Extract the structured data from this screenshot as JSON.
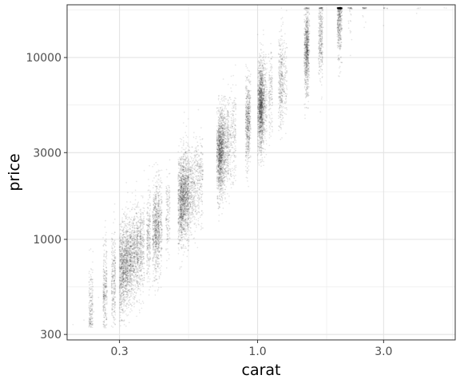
{
  "chart_data": {
    "type": "scatter",
    "title": "",
    "xlabel": "carat",
    "ylabel": "price",
    "x_scale": "log10",
    "y_scale": "log10",
    "xlim": [
      0.19,
      5.6
    ],
    "ylim": [
      280,
      19500
    ],
    "x_ticks": [
      {
        "value": 0.3,
        "label": "0.3"
      },
      {
        "value": 1.0,
        "label": "1.0"
      },
      {
        "value": 3.0,
        "label": "3.0"
      }
    ],
    "y_ticks": [
      {
        "value": 300,
        "label": "300"
      },
      {
        "value": 1000,
        "label": "1000"
      },
      {
        "value": 3000,
        "label": "3000"
      },
      {
        "value": 10000,
        "label": "10000"
      }
    ],
    "grid": true,
    "theme": "minimal-bordered",
    "point_color": "#000000",
    "point_alpha": 0.1,
    "n_points_approx": 53940,
    "price_ceiling": 18823,
    "series": [
      {
        "values": [
          [
            0.2,
            340
          ],
          [
            0.22,
            360
          ],
          [
            0.23,
            330
          ],
          [
            0.23,
            420
          ],
          [
            0.24,
            400
          ],
          [
            0.25,
            480
          ],
          [
            0.26,
            470
          ],
          [
            0.27,
            520
          ],
          [
            0.28,
            520
          ],
          [
            0.3,
            420
          ],
          [
            0.3,
            540
          ],
          [
            0.3,
            700
          ],
          [
            0.3,
            900
          ],
          [
            0.31,
            600
          ],
          [
            0.31,
            760
          ],
          [
            0.32,
            700
          ],
          [
            0.33,
            800
          ],
          [
            0.34,
            900
          ],
          [
            0.35,
            870
          ],
          [
            0.38,
            950
          ],
          [
            0.4,
            1000
          ],
          [
            0.41,
            1150
          ],
          [
            0.42,
            1200
          ],
          [
            0.45,
            1300
          ],
          [
            0.5,
            1500
          ],
          [
            0.51,
            1700
          ],
          [
            0.52,
            1800
          ],
          [
            0.55,
            1900
          ],
          [
            0.6,
            2100
          ],
          [
            0.7,
            2700
          ],
          [
            0.71,
            2900
          ],
          [
            0.72,
            2800
          ],
          [
            0.75,
            3000
          ],
          [
            0.8,
            3200
          ],
          [
            0.9,
            3800
          ],
          [
            0.91,
            4200
          ],
          [
            1.0,
            5200
          ],
          [
            1.01,
            5500
          ],
          [
            1.02,
            6500
          ],
          [
            1.1,
            5700
          ],
          [
            1.2,
            6400
          ],
          [
            1.25,
            7500
          ],
          [
            1.5,
            9500
          ],
          [
            1.51,
            11000
          ],
          [
            1.7,
            12000
          ],
          [
            2.0,
            14500
          ],
          [
            2.01,
            15500
          ],
          [
            2.05,
            16000
          ],
          [
            2.5,
            17000
          ],
          [
            3.0,
            15000
          ],
          [
            4.0,
            17500
          ]
        ]
      }
    ]
  }
}
